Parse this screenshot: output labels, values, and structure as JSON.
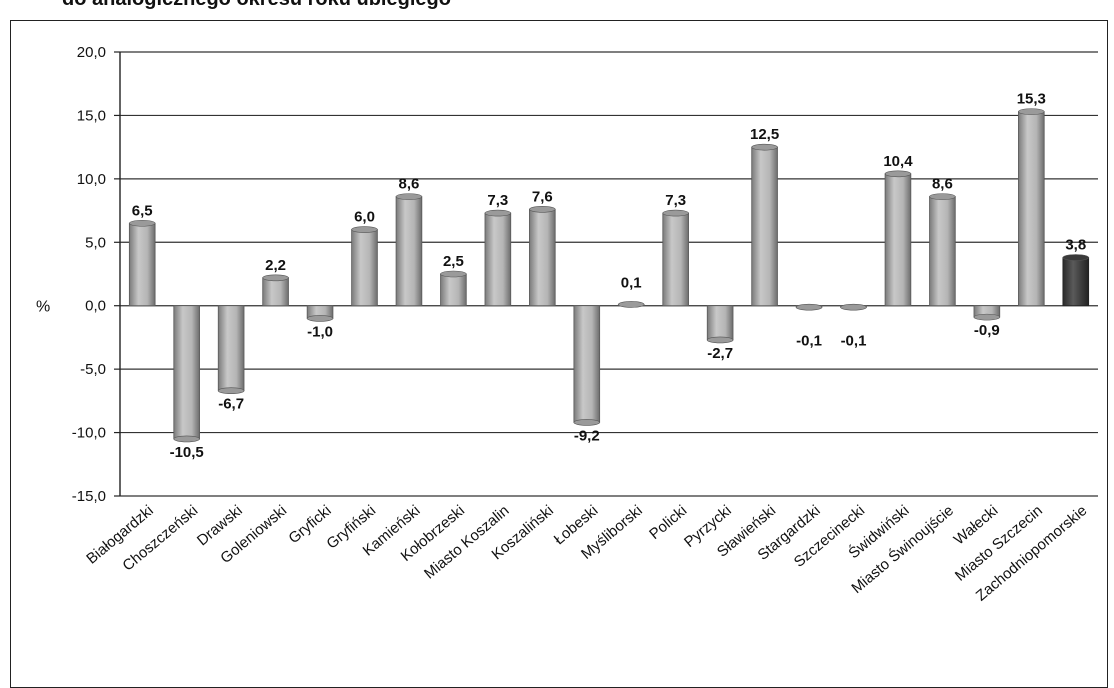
{
  "chart_data": {
    "type": "bar",
    "title": "do analogicznego okresu roku ubiegłego",
    "ylabel": "%",
    "ylim": [
      -15,
      20
    ],
    "yticks": [
      "20,0",
      "15,0",
      "10,0",
      "5,0",
      "0,0",
      "-5,0",
      "-10,0",
      "-15,0"
    ],
    "ytick_values": [
      20,
      15,
      10,
      5,
      0,
      -5,
      -10,
      -15
    ],
    "grid": true,
    "categories": [
      "Białogardzki",
      "Choszczeński",
      "Drawski",
      "Goleniowski",
      "Gryficki",
      "Gryfiński",
      "Kamieński",
      "Kołobrzeski",
      "Miasto Koszalin",
      "Koszaliński",
      "Łobeski",
      "Myśliborski",
      "Policki",
      "Pyrzycki",
      "Sławieński",
      "Stargardzki",
      "Szczecinecki",
      "Świdwiński",
      "Miasto Świnoujście",
      "Wałecki",
      "Miasto Szczecin",
      "Zachodniopomorskie"
    ],
    "values": [
      6.5,
      -10.5,
      -6.7,
      2.2,
      -1.0,
      6.0,
      8.6,
      2.5,
      7.3,
      7.6,
      -9.2,
      0.1,
      7.3,
      -2.7,
      12.5,
      -0.1,
      -0.1,
      10.4,
      8.6,
      -0.9,
      15.3,
      3.8
    ],
    "value_labels": [
      "6,5",
      "-10,5",
      "-6,7",
      "2,2",
      "-1,0",
      "6,0",
      "8,6",
      "2,5",
      "7,3",
      "7,6",
      "-9,2",
      "0,1",
      "7,3",
      "-2,7",
      "12,5",
      "-0,1",
      "-0,1",
      "10,4",
      "8,6",
      "-0,9",
      "15,3",
      "3,8"
    ],
    "colors": {
      "bar": "#a8a8a8",
      "bar_edge": "#e6e6e6",
      "highlight_bar": "#4a4a4a",
      "grid": "#333333"
    }
  }
}
